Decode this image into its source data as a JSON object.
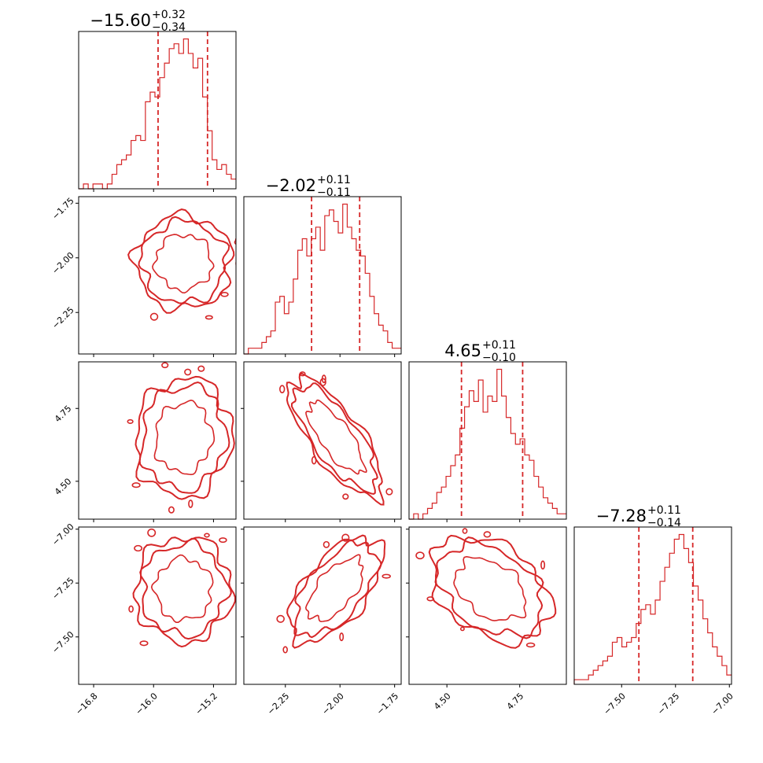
{
  "colors": {
    "accent": "#d62728",
    "frame": "#000000",
    "background": "#ffffff"
  },
  "chart_data": {
    "type": "corner",
    "description_of_marks": "1D histograms on the diagonal with dashed quantile lines; 2D density contours off-diagonal",
    "parameters": [
      {
        "title_value": "−15.60",
        "title_plus": "+0.32",
        "title_minus": "−0.34",
        "median": -15.6,
        "plus": 0.32,
        "minus": 0.34,
        "range": [
          -17.0,
          -14.9
        ],
        "ticks": [
          {
            "value": -16.8,
            "label": "−16.8"
          },
          {
            "value": -16.0,
            "label": "−16.0"
          },
          {
            "value": -15.2,
            "label": "−15.2"
          }
        ],
        "quantile_lines": [
          -15.94,
          -15.28
        ]
      },
      {
        "title_value": "−2.02",
        "title_plus": "+0.11",
        "title_minus": "−0.11",
        "median": -2.02,
        "plus": 0.11,
        "minus": 0.11,
        "range": [
          -2.44,
          -1.72
        ],
        "ticks": [
          {
            "value": -2.25,
            "label": "−2.25"
          },
          {
            "value": -2.0,
            "label": "−2.00"
          },
          {
            "value": -1.75,
            "label": "−1.75"
          }
        ],
        "quantile_lines": [
          -2.13,
          -1.91
        ]
      },
      {
        "title_value": "4.65",
        "title_plus": "+0.11",
        "title_minus": "−0.10",
        "median": 4.65,
        "plus": 0.11,
        "minus": 0.1,
        "range": [
          4.37,
          4.91
        ],
        "ticks": [
          {
            "value": 4.5,
            "label": "4.50"
          },
          {
            "value": 4.75,
            "label": "4.75"
          }
        ],
        "quantile_lines": [
          4.55,
          4.76
        ]
      },
      {
        "title_value": "−7.28",
        "title_plus": "+0.11",
        "title_minus": "−0.14",
        "median": -7.28,
        "plus": 0.11,
        "minus": 0.14,
        "range": [
          -7.72,
          -6.99
        ],
        "ticks": [
          {
            "value": -7.5,
            "label": "−7.50"
          },
          {
            "value": -7.25,
            "label": "−7.25"
          },
          {
            "value": -7.0,
            "label": "−7.00"
          }
        ],
        "quantile_lines": [
          -7.42,
          -7.17
        ]
      }
    ],
    "histograms": [
      [
        0,
        1,
        0,
        1,
        1,
        0,
        1,
        3,
        5,
        6,
        7,
        10,
        11,
        10,
        18,
        20,
        19,
        23,
        26,
        29,
        30,
        28,
        31,
        28,
        25,
        27,
        19,
        12,
        6,
        4,
        5,
        3,
        2
      ],
      [
        0,
        1,
        1,
        1,
        2,
        3,
        4,
        9,
        10,
        7,
        9,
        13,
        18,
        20,
        17,
        20,
        22,
        18,
        24,
        25,
        23,
        21,
        26,
        22,
        20,
        18,
        17,
        14,
        10,
        7,
        5,
        4,
        2,
        1,
        1
      ],
      [
        0,
        1,
        0,
        1,
        2,
        3,
        5,
        6,
        8,
        10,
        12,
        17,
        21,
        24,
        22,
        26,
        20,
        23,
        22,
        28,
        23,
        19,
        16,
        14,
        15,
        12,
        11,
        8,
        6,
        4,
        3,
        2,
        1,
        1
      ],
      [
        1,
        1,
        1,
        2,
        3,
        4,
        5,
        6,
        9,
        10,
        8,
        9,
        10,
        13,
        16,
        17,
        15,
        18,
        22,
        25,
        28,
        31,
        32,
        29,
        26,
        21,
        18,
        14,
        11,
        8,
        6,
        4,
        2
      ]
    ],
    "correlations": [
      {
        "x": 0,
        "y": 1,
        "rho": 0.0
      },
      {
        "x": 0,
        "y": 2,
        "rho": 0.05
      },
      {
        "x": 0,
        "y": 3,
        "rho": 0.0
      },
      {
        "x": 1,
        "y": 2,
        "rho": -0.75
      },
      {
        "x": 1,
        "y": 3,
        "rho": 0.6
      },
      {
        "x": 2,
        "y": 3,
        "rho": -0.35
      }
    ]
  }
}
